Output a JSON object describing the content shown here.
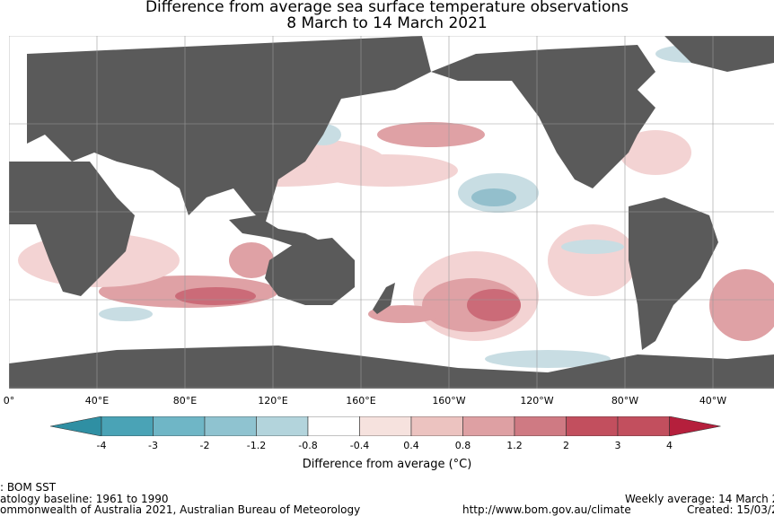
{
  "title_line1": "Difference from average sea surface temperature observations",
  "title_line2": "8 March to 14 March 2021",
  "longitude_labels": [
    "0°",
    "40°E",
    "80°E",
    "120°E",
    "160°E",
    "160°W",
    "120°W",
    "80°W",
    "40°W"
  ],
  "colorbar": {
    "labels": [
      "-4",
      "-3",
      "-2",
      "-1.2",
      "-0.8",
      "-0.4",
      "0.4",
      "0.8",
      "1.2",
      "2",
      "3",
      "4"
    ],
    "colors": [
      "#2f8fa3",
      "#4aa3b6",
      "#6fb6c6",
      "#8fc3d0",
      "#b3d4dc",
      "#ffffff",
      "#f6e2de",
      "#ecc3c0",
      "#dea0a3",
      "#cf7a83",
      "#c24f5e",
      "#b51f3c"
    ],
    "title": "Difference from average (°C)"
  },
  "footer": {
    "left1": ": BOM SST",
    "left2": "atology baseline: 1961 to 1990",
    "left3": "ommonwealth of Australia 2021, Australian Bureau of Meteorology",
    "url": "http://www.bom.gov.au/climate",
    "right1": "Weekly average: 14 March 2",
    "right2": "Created: 15/03/2"
  },
  "colors": {
    "land": "#5a5a5a",
    "ocean": "#ffffff",
    "warm_light": "#f3d3d3",
    "warm_mid": "#dfa1a5",
    "warm_strong": "#cb6b78",
    "cool_light": "#c8dde3",
    "cool_mid": "#93bfcc"
  }
}
